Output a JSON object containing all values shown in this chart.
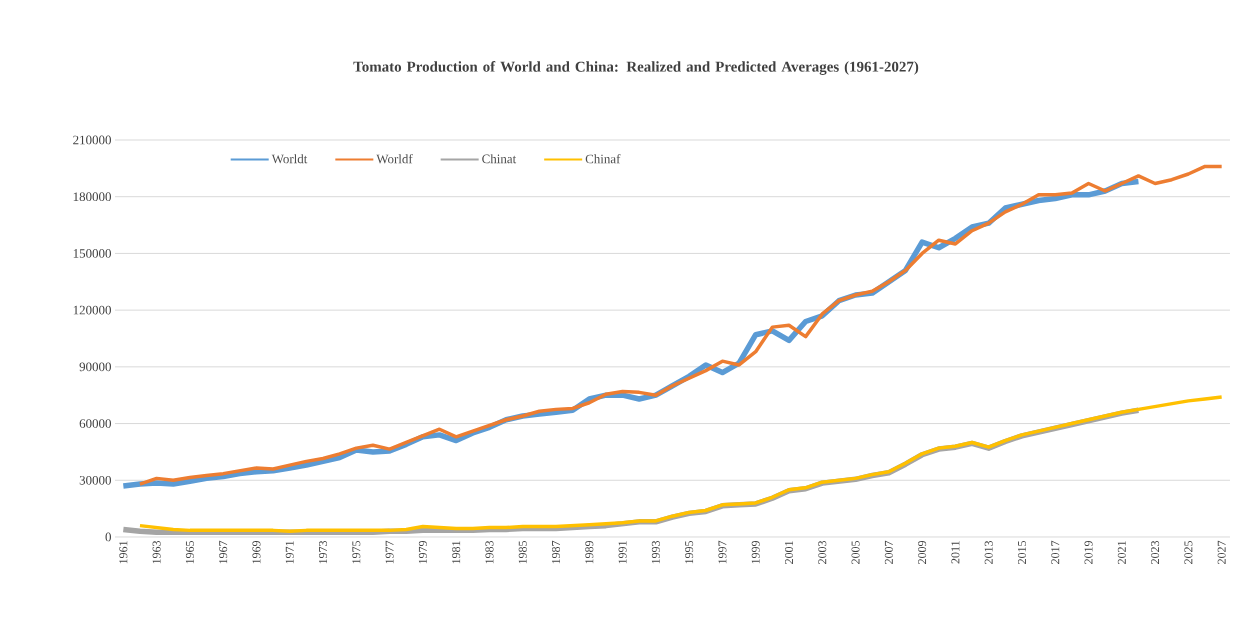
{
  "chart_data": {
    "type": "line",
    "title": "Tomato Production of World and China: Realized and Predicted Averages (1961-2027)",
    "categories": [
      "1961",
      null,
      "1963",
      null,
      "1965",
      null,
      "1967",
      null,
      "1969",
      null,
      "1971",
      null,
      "1973",
      null,
      "1975",
      null,
      "1977",
      null,
      "1979",
      null,
      "1981",
      null,
      "1983",
      null,
      "1985",
      null,
      "1987",
      null,
      "1989",
      null,
      "1991",
      null,
      "1993",
      null,
      "1995",
      null,
      "1997",
      null,
      "1999",
      null,
      "2001",
      null,
      "2003",
      null,
      "2005",
      null,
      "2007",
      null,
      "2009",
      null,
      "2011",
      null,
      "2013",
      null,
      "2015",
      null,
      "2017",
      null,
      "2019",
      null,
      "2021",
      null,
      "2023",
      null,
      "2025",
      null,
      "2027"
    ],
    "series": [
      {
        "name": "Worldt",
        "color": "#5b9bd5",
        "values": [
          27000,
          28000,
          28500,
          28000,
          29500,
          31000,
          32000,
          33500,
          34500,
          35000,
          36500,
          38000,
          40000,
          42000,
          46000,
          45000,
          45500,
          49000,
          53000,
          54000,
          51000,
          55000,
          58000,
          62000,
          64000,
          65000,
          66000,
          67000,
          73000,
          75000,
          75000,
          73000,
          75000,
          80000,
          85000,
          91000,
          87000,
          92000,
          107000,
          109000,
          104000,
          114000,
          117000,
          125000,
          128000,
          129000,
          135000,
          141000,
          156000,
          153000,
          158000,
          164000,
          166000,
          174000,
          176000,
          178000,
          179000,
          181000,
          181000,
          183000,
          187000,
          188000,
          null,
          null,
          null,
          null,
          null
        ]
      },
      {
        "name": "Worldf",
        "color": "#ed7d31",
        "values": [
          null,
          28000,
          31000,
          30000,
          31500,
          32500,
          33500,
          35000,
          36500,
          36000,
          38000,
          40000,
          41500,
          44000,
          47000,
          48500,
          46500,
          50000,
          53500,
          57000,
          53000,
          56000,
          59000,
          62000,
          64000,
          66500,
          67500,
          68000,
          71000,
          75500,
          77000,
          76500,
          75000,
          80000,
          84000,
          88000,
          93000,
          91000,
          98000,
          111000,
          112000,
          106000,
          118000,
          125000,
          128000,
          130000,
          135000,
          141000,
          150000,
          157000,
          155000,
          162000,
          166000,
          172000,
          176000,
          181000,
          181000,
          182000,
          187000,
          183000,
          187000,
          191000,
          187000,
          189000,
          192000,
          196000,
          196000
        ]
      },
      {
        "name": "Chinat",
        "color": "#a5a5a5",
        "values": [
          4000,
          3000,
          2500,
          2500,
          2500,
          2500,
          2500,
          2500,
          2500,
          2500,
          2500,
          2500,
          2500,
          2500,
          2500,
          2500,
          3000,
          3000,
          3500,
          3500,
          3500,
          3500,
          4000,
          4000,
          4500,
          4500,
          4500,
          5000,
          5500,
          6000,
          7000,
          8000,
          8000,
          10500,
          12500,
          13500,
          16500,
          17000,
          17500,
          20500,
          24500,
          25500,
          28500,
          29500,
          30500,
          32500,
          34000,
          38500,
          43500,
          46500,
          47500,
          49500,
          47000,
          50500,
          53500,
          55500,
          57500,
          59500,
          61500,
          63500,
          65500,
          67000,
          null,
          null,
          null,
          null,
          null
        ]
      },
      {
        "name": "Chinaf",
        "color": "#ffc000",
        "values": [
          null,
          6000,
          5000,
          4000,
          3500,
          3500,
          3500,
          3500,
          3500,
          3500,
          3000,
          3500,
          3500,
          3500,
          3500,
          3500,
          3500,
          4000,
          5500,
          5000,
          4500,
          4500,
          5000,
          5000,
          5500,
          5500,
          5500,
          6000,
          6500,
          7000,
          7500,
          8500,
          8500,
          11000,
          13000,
          14000,
          17000,
          17500,
          18000,
          21000,
          25000,
          26000,
          29000,
          30000,
          31000,
          33000,
          34500,
          39000,
          44000,
          47000,
          48000,
          50000,
          47500,
          51000,
          54000,
          56000,
          58000,
          60000,
          62000,
          64000,
          66000,
          67500,
          69000,
          70500,
          72000,
          73000,
          74000
        ]
      }
    ],
    "ylim": [
      0,
      210000
    ],
    "yticks": [
      0,
      30000,
      60000,
      90000,
      120000,
      150000,
      180000,
      210000
    ],
    "grid": "y",
    "legend": "top left"
  }
}
